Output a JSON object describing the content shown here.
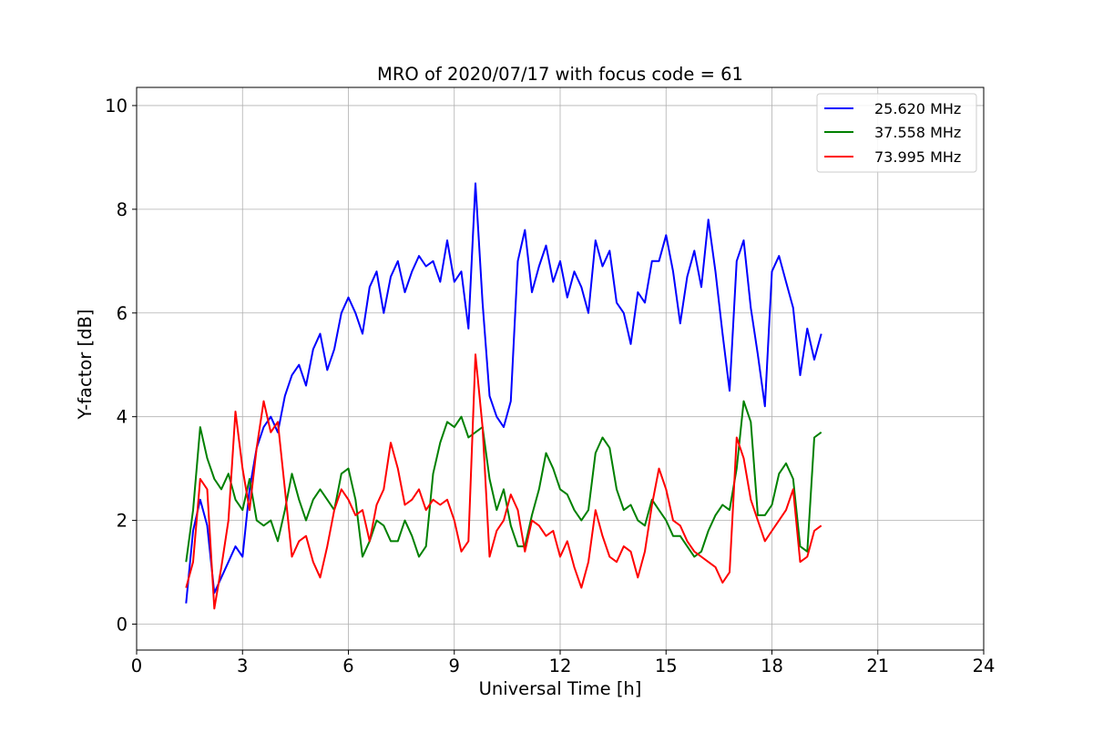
{
  "chart_data": {
    "type": "line",
    "title": "MRO of 2020/07/17 with focus code = 61",
    "xlabel": "Universal Time [h]",
    "ylabel": "Y-factor [dB]",
    "xlim": [
      0,
      24
    ],
    "ylim": [
      -0.5,
      10.35
    ],
    "xticks": [
      0,
      3,
      6,
      9,
      12,
      15,
      18,
      21,
      24
    ],
    "yticks": [
      0,
      2,
      4,
      6,
      8,
      10
    ],
    "grid": true,
    "legend_position": "top-right",
    "series": [
      {
        "name": "25.620 MHz",
        "color": "#0000ff",
        "x": [
          1.4,
          1.6,
          1.8,
          2.0,
          2.2,
          2.4,
          2.6,
          2.8,
          3.0,
          3.2,
          3.4,
          3.6,
          3.8,
          4.0,
          4.2,
          4.4,
          4.6,
          4.8,
          5.0,
          5.2,
          5.4,
          5.6,
          5.8,
          6.0,
          6.2,
          6.4,
          6.6,
          6.8,
          7.0,
          7.2,
          7.4,
          7.6,
          7.8,
          8.0,
          8.2,
          8.4,
          8.6,
          8.8,
          9.0,
          9.2,
          9.4,
          9.6,
          9.8,
          10.0,
          10.2,
          10.4,
          10.6,
          10.8,
          11.0,
          11.2,
          11.4,
          11.6,
          11.8,
          12.0,
          12.2,
          12.4,
          12.6,
          12.8,
          13.0,
          13.2,
          13.4,
          13.6,
          13.8,
          14.0,
          14.2,
          14.4,
          14.6,
          14.8,
          15.0,
          15.2,
          15.4,
          15.6,
          15.8,
          16.0,
          16.2,
          16.4,
          16.6,
          16.8,
          17.0,
          17.2,
          17.4,
          17.6,
          17.8,
          18.0,
          18.2,
          18.4,
          18.6,
          18.8,
          19.0,
          19.2,
          19.4
        ],
        "y": [
          0.4,
          1.8,
          2.4,
          1.9,
          0.6,
          0.9,
          1.2,
          1.5,
          1.3,
          2.6,
          3.4,
          3.8,
          4.0,
          3.7,
          4.4,
          4.8,
          5.0,
          4.6,
          5.3,
          5.6,
          4.9,
          5.3,
          6.0,
          6.3,
          6.0,
          5.6,
          6.5,
          6.8,
          6.0,
          6.7,
          7.0,
          6.4,
          6.8,
          7.1,
          6.9,
          7.0,
          6.6,
          7.4,
          6.6,
          6.8,
          5.7,
          8.5,
          6.2,
          4.4,
          4.0,
          3.8,
          4.3,
          7.0,
          7.6,
          6.4,
          6.9,
          7.3,
          6.6,
          7.0,
          6.3,
          6.8,
          6.5,
          6.0,
          7.4,
          6.9,
          7.2,
          6.2,
          6.0,
          5.4,
          6.4,
          6.2,
          7.0,
          7.0,
          7.5,
          6.8,
          5.8,
          6.7,
          7.2,
          6.5,
          7.8,
          6.8,
          5.6,
          4.5,
          7.0,
          7.4,
          6.1,
          5.2,
          4.2,
          6.8,
          7.1,
          6.6,
          6.1,
          4.8,
          5.7,
          5.1,
          5.6
        ]
      },
      {
        "name": "37.558 MHz",
        "color": "#008000",
        "x": [
          1.4,
          1.6,
          1.8,
          2.0,
          2.2,
          2.4,
          2.6,
          2.8,
          3.0,
          3.2,
          3.4,
          3.6,
          3.8,
          4.0,
          4.2,
          4.4,
          4.6,
          4.8,
          5.0,
          5.2,
          5.4,
          5.6,
          5.8,
          6.0,
          6.2,
          6.4,
          6.6,
          6.8,
          7.0,
          7.2,
          7.4,
          7.6,
          7.8,
          8.0,
          8.2,
          8.4,
          8.6,
          8.8,
          9.0,
          9.2,
          9.4,
          9.6,
          9.8,
          10.0,
          10.2,
          10.4,
          10.6,
          10.8,
          11.0,
          11.2,
          11.4,
          11.6,
          11.8,
          12.0,
          12.2,
          12.4,
          12.6,
          12.8,
          13.0,
          13.2,
          13.4,
          13.6,
          13.8,
          14.0,
          14.2,
          14.4,
          14.6,
          14.8,
          15.0,
          15.2,
          15.4,
          15.6,
          15.8,
          16.0,
          16.2,
          16.4,
          16.6,
          16.8,
          17.0,
          17.2,
          17.4,
          17.6,
          17.8,
          18.0,
          18.2,
          18.4,
          18.6,
          18.8,
          19.0,
          19.2,
          19.4
        ],
        "y": [
          1.2,
          2.2,
          3.8,
          3.2,
          2.8,
          2.6,
          2.9,
          2.4,
          2.2,
          2.8,
          2.0,
          1.9,
          2.0,
          1.6,
          2.2,
          2.9,
          2.4,
          2.0,
          2.4,
          2.6,
          2.4,
          2.2,
          2.9,
          3.0,
          2.4,
          1.3,
          1.6,
          2.0,
          1.9,
          1.6,
          1.6,
          2.0,
          1.7,
          1.3,
          1.5,
          2.9,
          3.5,
          3.9,
          3.8,
          4.0,
          3.6,
          3.7,
          3.8,
          2.8,
          2.2,
          2.6,
          1.9,
          1.5,
          1.5,
          2.1,
          2.6,
          3.3,
          3.0,
          2.6,
          2.5,
          2.2,
          2.0,
          2.2,
          3.3,
          3.6,
          3.4,
          2.6,
          2.2,
          2.3,
          2.0,
          1.9,
          2.4,
          2.2,
          2.0,
          1.7,
          1.7,
          1.5,
          1.3,
          1.4,
          1.8,
          2.1,
          2.3,
          2.2,
          3.0,
          4.3,
          3.9,
          2.1,
          2.1,
          2.3,
          2.9,
          3.1,
          2.8,
          1.5,
          1.4,
          3.6,
          3.7
        ]
      },
      {
        "name": "73.995 MHz",
        "color": "#ff0000",
        "x": [
          1.4,
          1.6,
          1.8,
          2.0,
          2.2,
          2.4,
          2.6,
          2.8,
          3.0,
          3.2,
          3.4,
          3.6,
          3.8,
          4.0,
          4.2,
          4.4,
          4.6,
          4.8,
          5.0,
          5.2,
          5.4,
          5.6,
          5.8,
          6.0,
          6.2,
          6.4,
          6.6,
          6.8,
          7.0,
          7.2,
          7.4,
          7.6,
          7.8,
          8.0,
          8.2,
          8.4,
          8.6,
          8.8,
          9.0,
          9.2,
          9.4,
          9.6,
          9.8,
          10.0,
          10.2,
          10.4,
          10.6,
          10.8,
          11.0,
          11.2,
          11.4,
          11.6,
          11.8,
          12.0,
          12.2,
          12.4,
          12.6,
          12.8,
          13.0,
          13.2,
          13.4,
          13.6,
          13.8,
          14.0,
          14.2,
          14.4,
          14.6,
          14.8,
          15.0,
          15.2,
          15.4,
          15.6,
          15.8,
          16.0,
          16.2,
          16.4,
          16.6,
          16.8,
          17.0,
          17.2,
          17.4,
          17.6,
          17.8,
          18.0,
          18.2,
          18.4,
          18.6,
          18.8,
          19.0,
          19.2,
          19.4
        ],
        "y": [
          0.7,
          1.2,
          2.8,
          2.6,
          0.3,
          1.1,
          2.0,
          4.1,
          3.0,
          2.2,
          3.4,
          4.3,
          3.7,
          3.9,
          2.6,
          1.3,
          1.6,
          1.7,
          1.2,
          0.9,
          1.5,
          2.2,
          2.6,
          2.4,
          2.1,
          2.2,
          1.6,
          2.3,
          2.6,
          3.5,
          3.0,
          2.3,
          2.4,
          2.6,
          2.2,
          2.4,
          2.3,
          2.4,
          2.0,
          1.4,
          1.6,
          5.2,
          3.8,
          1.3,
          1.8,
          2.0,
          2.5,
          2.2,
          1.4,
          2.0,
          1.9,
          1.7,
          1.8,
          1.3,
          1.6,
          1.1,
          0.7,
          1.2,
          2.2,
          1.7,
          1.3,
          1.2,
          1.5,
          1.4,
          0.9,
          1.4,
          2.3,
          3.0,
          2.6,
          2.0,
          1.9,
          1.6,
          1.4,
          1.3,
          1.2,
          1.1,
          0.8,
          1.0,
          3.6,
          3.2,
          2.4,
          2.0,
          1.6,
          1.8,
          2.0,
          2.2,
          2.6,
          1.2,
          1.3,
          1.8,
          1.9
        ]
      }
    ]
  }
}
